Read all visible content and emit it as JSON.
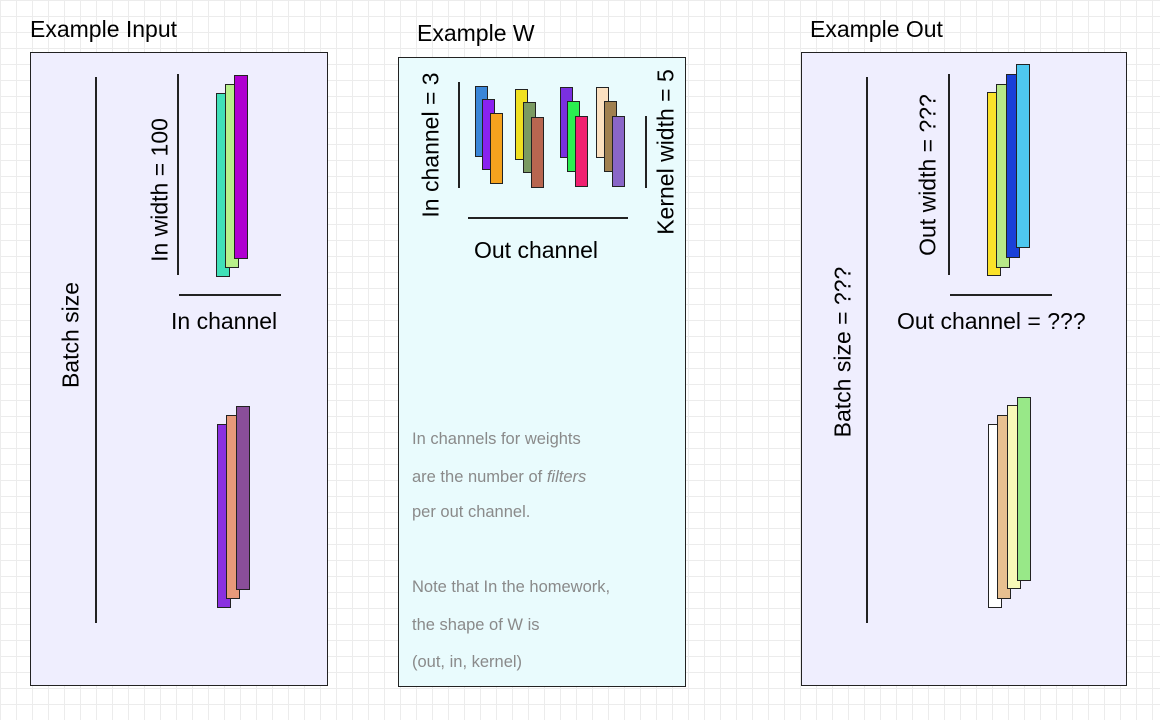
{
  "panels": {
    "input": {
      "title": "Example Input",
      "batch_label": "Batch size",
      "width_label": "In width = 100",
      "channel_label": "In channel",
      "colors": {
        "sample1": [
          "#40e0b8",
          "#b8f08a",
          "#b000d0"
        ],
        "sample2": [
          "#8a30e0",
          "#e89a7a",
          "#8a4e9a"
        ]
      }
    },
    "weights": {
      "title": "Example W",
      "in_channel_label": "In channel = 3",
      "out_channel_label": "Out channel",
      "kernel_label": "Kernel width = 5",
      "colors": {
        "filter1": [
          "#3a86d8",
          "#8a22f0",
          "#f5a21e"
        ],
        "filter2": [
          "#f0e020",
          "#7a9a62",
          "#b86650"
        ],
        "filter3": [
          "#7a30e0",
          "#2aee50",
          "#f02070"
        ],
        "filter4": [
          "#fbe0c0",
          "#a08050",
          "#8a66c8"
        ]
      },
      "note": {
        "line1": "In channels for weights",
        "line2_start": "are the number of ",
        "line2_em": "filters",
        "line3": "per out channel.",
        "line4": "Note that In the homework,",
        "line5": "the shape of W is",
        "line6": "(out, in, kernel)"
      }
    },
    "output": {
      "title": "Example Out",
      "batch_label": "Batch size = ???",
      "width_label": "Out width = ???",
      "channel_label": "Out channel = ???",
      "colors": {
        "sample1": [
          "#fbe22a",
          "#b8e888",
          "#1a40d8",
          "#4ec8f0"
        ],
        "sample2": [
          "#ffffff",
          "#e8c090",
          "#f8f8b8",
          "#98e888"
        ]
      }
    }
  }
}
